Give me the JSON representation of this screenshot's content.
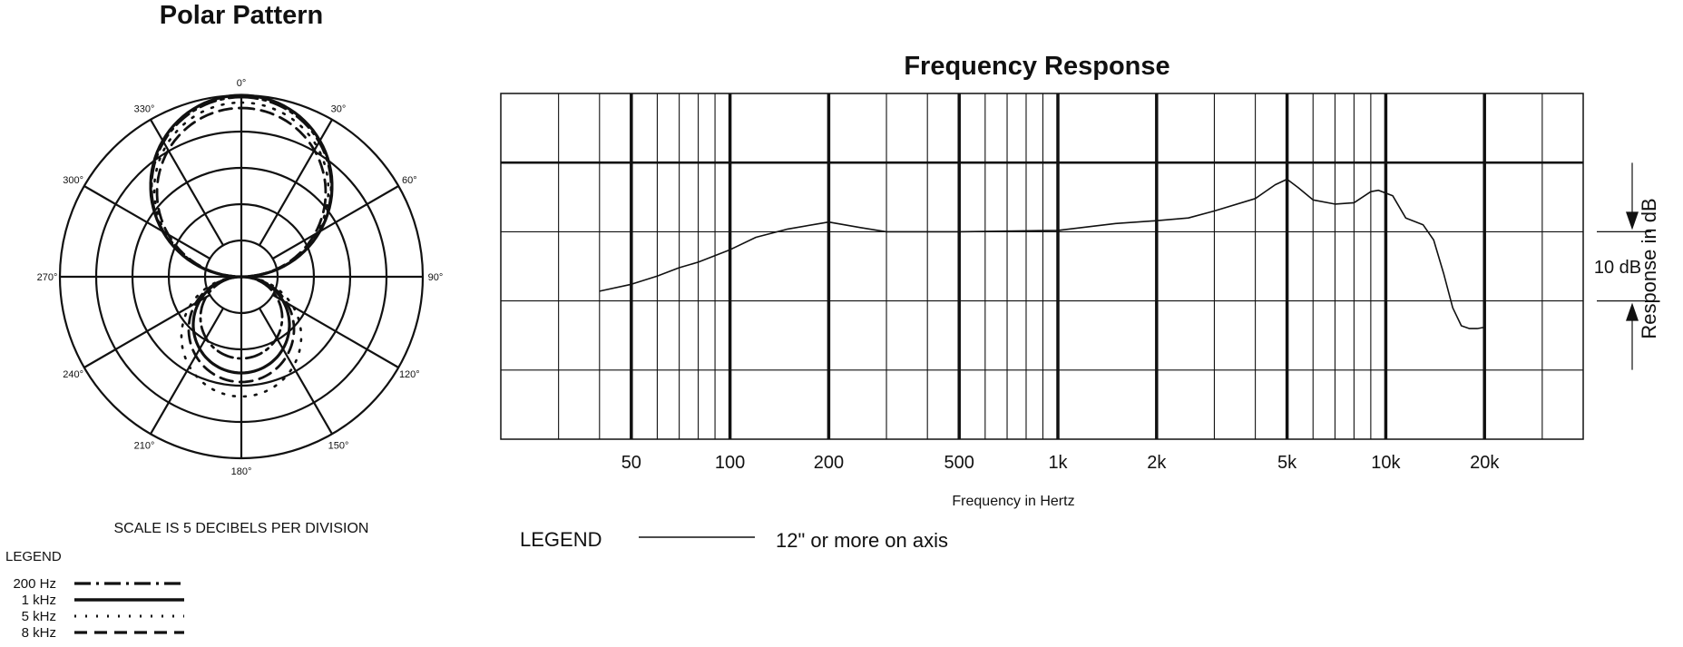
{
  "chart_data": [
    {
      "type": "polar",
      "title": "Polar Pattern",
      "angle_labels": [
        "0°",
        "30°",
        "60°",
        "90°",
        "120°",
        "150°",
        "180°",
        "210°",
        "240°",
        "270°",
        "300°",
        "330°"
      ],
      "scale_note": "SCALE IS 5 DECIBELS PER DIVISION",
      "legend_title": "LEGEND",
      "series": [
        {
          "name": "200 Hz",
          "style": "dash-dot",
          "r_front": 0.99,
          "r_back": 0.45
        },
        {
          "name": "1 kHz",
          "style": "solid",
          "r_front": 1.0,
          "r_back": 0.53
        },
        {
          "name": "5 kHz",
          "style": "dotted",
          "r_front": 0.96,
          "r_back": 0.66
        },
        {
          "name": "8 kHz",
          "style": "dashed",
          "r_front": 0.93,
          "r_back": 0.58
        }
      ]
    },
    {
      "type": "line",
      "title": "Frequency Response",
      "x_scale": "log",
      "xlim": [
        20,
        40000
      ],
      "ylim": [
        -15,
        10
      ],
      "x_ticks": [
        50,
        100,
        200,
        500,
        1000,
        2000,
        5000,
        10000,
        20000
      ],
      "x_tick_labels": [
        "50",
        "100",
        "200",
        "500",
        "1k",
        "2k",
        "5k",
        "10k",
        "20k"
      ],
      "xlabel": "Frequency in Hertz",
      "ylabel": "Response in dB",
      "scale_marker": "10 dB",
      "legend_title": "LEGEND",
      "series": [
        {
          "name": "12\" or more on axis",
          "points": [
            [
              40,
              -4.3
            ],
            [
              50,
              -3.8
            ],
            [
              60,
              -3.2
            ],
            [
              70,
              -2.6
            ],
            [
              80,
              -2.2
            ],
            [
              100,
              -1.3
            ],
            [
              120,
              -0.4
            ],
            [
              150,
              0.2
            ],
            [
              200,
              0.7
            ],
            [
              250,
              0.3
            ],
            [
              300,
              0.0
            ],
            [
              500,
              0.0
            ],
            [
              1000,
              0.1
            ],
            [
              1500,
              0.6
            ],
            [
              2000,
              0.8
            ],
            [
              2500,
              1.0
            ],
            [
              3000,
              1.5
            ],
            [
              4000,
              2.4
            ],
            [
              4600,
              3.4
            ],
            [
              5000,
              3.8
            ],
            [
              5400,
              3.2
            ],
            [
              6000,
              2.3
            ],
            [
              7000,
              2.0
            ],
            [
              8000,
              2.1
            ],
            [
              9000,
              2.9
            ],
            [
              9500,
              3.0
            ],
            [
              10500,
              2.6
            ],
            [
              11500,
              1.0
            ],
            [
              13000,
              0.5
            ],
            [
              14000,
              -0.6
            ],
            [
              15000,
              -3.0
            ],
            [
              16000,
              -5.5
            ],
            [
              17000,
              -6.8
            ],
            [
              18000,
              -7.0
            ],
            [
              19000,
              -7.0
            ],
            [
              20000,
              -6.9
            ]
          ]
        }
      ]
    }
  ]
}
